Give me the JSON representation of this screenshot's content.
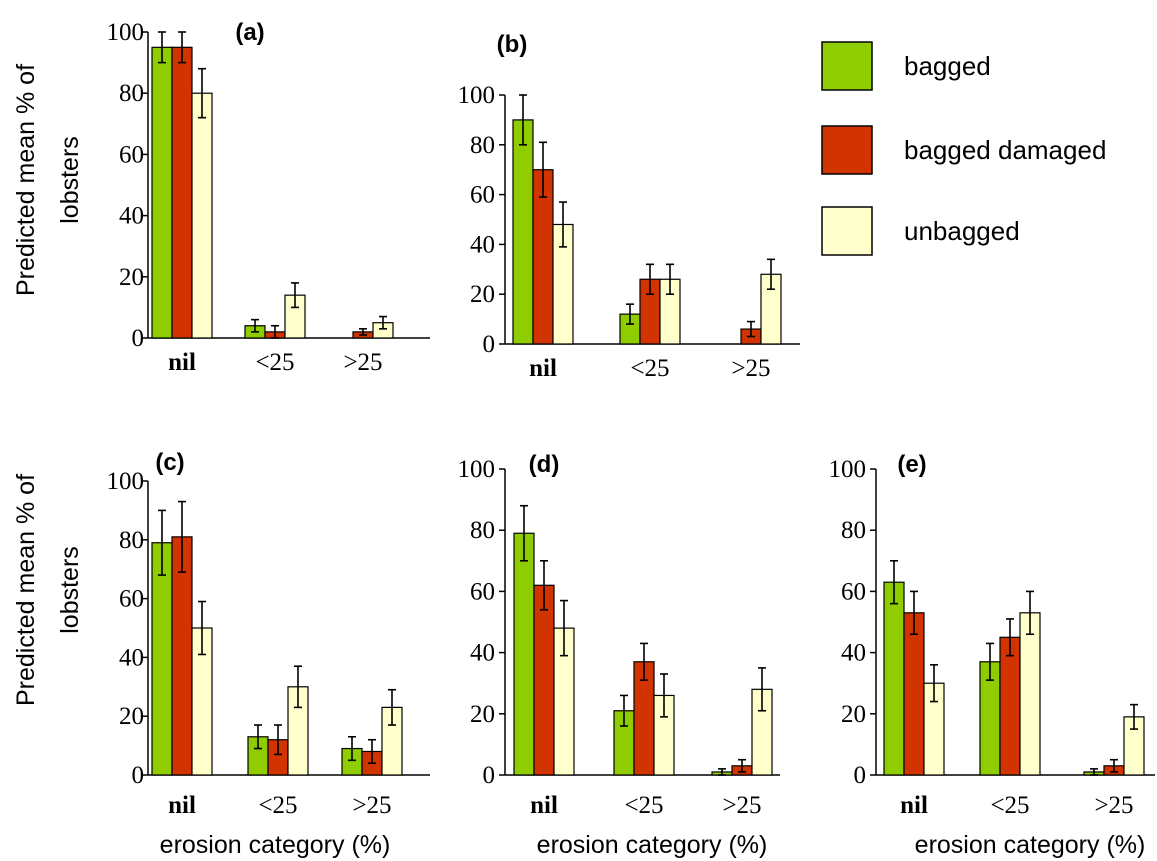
{
  "colors": {
    "bagged": "#8fcc00",
    "bagged damaged": "#d13400",
    "unbagged": "#ffffcc"
  },
  "labels": {
    "ylabel_line1": "Predicted mean % of",
    "ylabel_line2": "lobsters",
    "xlabel": "erosion category (%)"
  },
  "legend": {
    "items": [
      "bagged",
      "bagged damaged",
      "unbagged"
    ]
  },
  "chart_data": [
    {
      "type": "bar",
      "panel": "(a)",
      "categories": [
        "nil",
        "<25",
        ">25"
      ],
      "ylim": [
        0,
        100
      ],
      "yticks": [
        "0",
        "20",
        "40",
        "60",
        "80",
        "100"
      ],
      "series": [
        {
          "name": "bagged",
          "values": [
            95,
            4,
            0
          ],
          "err": [
            5,
            2,
            0
          ]
        },
        {
          "name": "bagged damaged",
          "values": [
            95,
            2,
            2
          ],
          "err": [
            5,
            2,
            1
          ]
        },
        {
          "name": "unbagged",
          "values": [
            80,
            14,
            5
          ],
          "err": [
            8,
            4,
            2
          ]
        }
      ]
    },
    {
      "type": "bar",
      "panel": "(b)",
      "categories": [
        "nil",
        "<25",
        ">25"
      ],
      "ylim": [
        0,
        100
      ],
      "yticks": [
        "0",
        "20",
        "40",
        "60",
        "80",
        "100"
      ],
      "series": [
        {
          "name": "bagged",
          "values": [
            90,
            12,
            0
          ],
          "err": [
            10,
            4,
            0
          ]
        },
        {
          "name": "bagged damaged",
          "values": [
            70,
            26,
            6
          ],
          "err": [
            11,
            6,
            3
          ]
        },
        {
          "name": "unbagged",
          "values": [
            48,
            26,
            28
          ],
          "err": [
            9,
            6,
            6
          ]
        }
      ]
    },
    {
      "type": "bar",
      "panel": "(c)",
      "categories": [
        "nil",
        "<25",
        ">25"
      ],
      "ylim": [
        0,
        100
      ],
      "yticks": [
        "0",
        "20",
        "40",
        "60",
        "80",
        "100"
      ],
      "series": [
        {
          "name": "bagged",
          "values": [
            79,
            13,
            9
          ],
          "err": [
            11,
            4,
            4
          ]
        },
        {
          "name": "bagged damaged",
          "values": [
            81,
            12,
            8
          ],
          "err": [
            12,
            5,
            4
          ]
        },
        {
          "name": "unbagged",
          "values": [
            50,
            30,
            23
          ],
          "err": [
            9,
            7,
            6
          ]
        }
      ]
    },
    {
      "type": "bar",
      "panel": "(d)",
      "categories": [
        "nil",
        "<25",
        ">25"
      ],
      "ylim": [
        0,
        100
      ],
      "yticks": [
        "0",
        "20",
        "40",
        "60",
        "80",
        "100"
      ],
      "series": [
        {
          "name": "bagged",
          "values": [
            79,
            21,
            1
          ],
          "err": [
            9,
            5,
            1
          ]
        },
        {
          "name": "bagged damaged",
          "values": [
            62,
            37,
            3
          ],
          "err": [
            8,
            6,
            2
          ]
        },
        {
          "name": "unbagged",
          "values": [
            48,
            26,
            28
          ],
          "err": [
            9,
            7,
            7
          ]
        }
      ]
    },
    {
      "type": "bar",
      "panel": "(e)",
      "categories": [
        "nil",
        "<25",
        ">25"
      ],
      "ylim": [
        0,
        100
      ],
      "yticks": [
        "0",
        "20",
        "40",
        "60",
        "80",
        "100"
      ],
      "series": [
        {
          "name": "bagged",
          "values": [
            63,
            37,
            1
          ],
          "err": [
            7,
            6,
            1
          ]
        },
        {
          "name": "bagged damaged",
          "values": [
            53,
            45,
            3
          ],
          "err": [
            7,
            6,
            2
          ]
        },
        {
          "name": "unbagged",
          "values": [
            30,
            53,
            19
          ],
          "err": [
            6,
            7,
            4
          ]
        }
      ]
    }
  ]
}
